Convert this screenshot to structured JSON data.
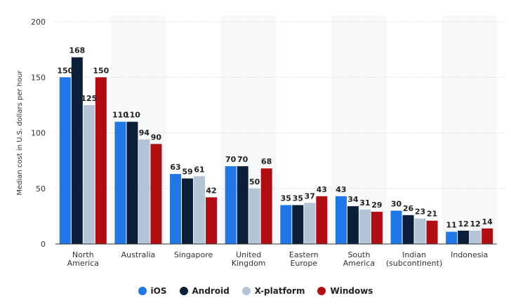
{
  "chart_data": {
    "type": "bar",
    "ylabel": "Median cost in U.S. dollars per hour",
    "ylim": [
      0,
      200
    ],
    "yticks": [
      0,
      50,
      100,
      150,
      200
    ],
    "grid": true,
    "legend_position": "bottom",
    "categories": [
      [
        "North",
        "America"
      ],
      [
        "Australia"
      ],
      [
        "Singapore"
      ],
      [
        "United",
        "Kingdom"
      ],
      [
        "Eastern",
        "Europe"
      ],
      [
        "South",
        "America"
      ],
      [
        "Indian",
        "(subcontinent)"
      ],
      [
        "Indonesia"
      ]
    ],
    "series": [
      {
        "name": "iOS",
        "color": "#1f77e8",
        "values": [
          150,
          110,
          63,
          70,
          35,
          43,
          30,
          11
        ]
      },
      {
        "name": "Android",
        "color": "#0b1f3a",
        "values": [
          168,
          110,
          59,
          70,
          35,
          34,
          26,
          12
        ]
      },
      {
        "name": "X-platform",
        "color": "#b3c4d6",
        "values": [
          125,
          94,
          61,
          50,
          37,
          31,
          23,
          12
        ]
      },
      {
        "name": "Windows",
        "color": "#b10c12",
        "values": [
          150,
          90,
          42,
          68,
          43,
          29,
          21,
          14
        ]
      }
    ]
  }
}
